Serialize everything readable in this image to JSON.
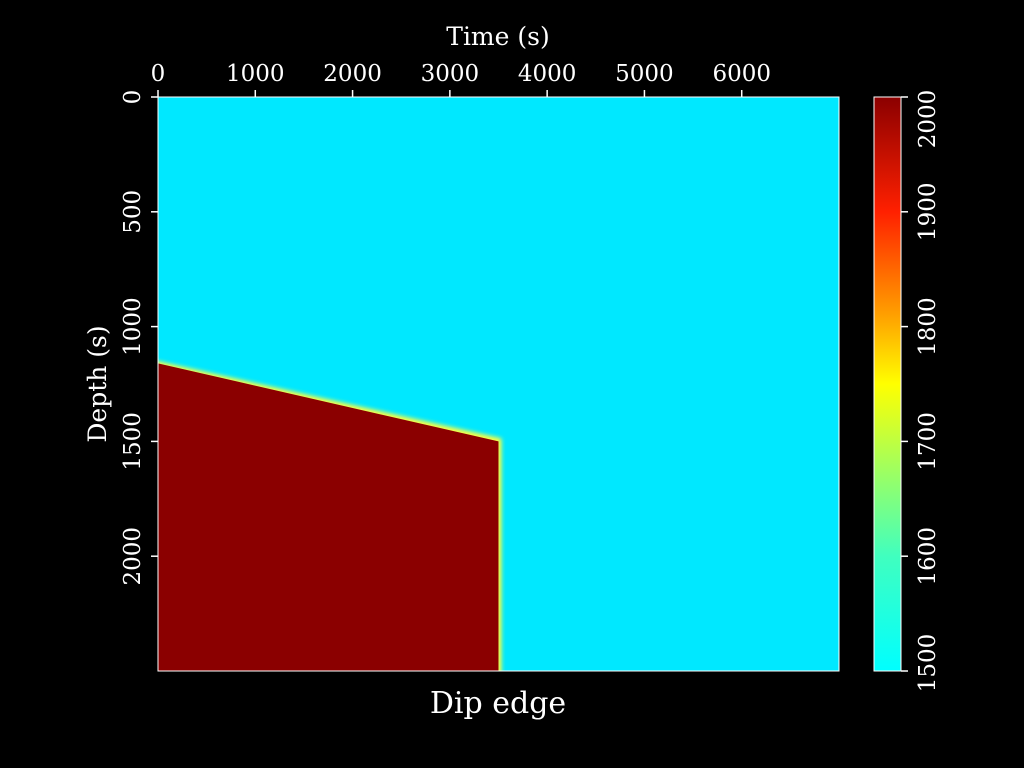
{
  "chart_data": {
    "type": "heatmap",
    "title": "Dip edge",
    "xlabel": "Time (s)",
    "ylabel": "Depth (s)",
    "xlim": [
      0,
      7000
    ],
    "ylim": [
      2500,
      0
    ],
    "x_ticks": [
      "0",
      "1000",
      "2000",
      "3000",
      "4000",
      "5000",
      "6000"
    ],
    "y_ticks": [
      "0",
      "500",
      "1000",
      "1500",
      "2000"
    ],
    "x_tick_values": [
      0,
      1000,
      2000,
      3000,
      4000,
      5000,
      6000
    ],
    "y_tick_values": [
      0,
      500,
      1000,
      1500,
      2000
    ],
    "colorbar": {
      "range": [
        1500,
        2000
      ],
      "ticks": [
        "1500",
        "1600",
        "1700",
        "1800",
        "1900",
        "2000"
      ],
      "tick_values": [
        1500,
        1600,
        1700,
        1800,
        1900,
        2000
      ],
      "colormap": "jet"
    },
    "background_value": 1500,
    "body": {
      "value": 2000,
      "top_edge": [
        {
          "x": 0,
          "y": 1160
        },
        {
          "x": 3500,
          "y": 1500
        }
      ],
      "right_edge_x": 3500,
      "bottom_y": 2500
    }
  },
  "colors": {
    "background": "#000000",
    "low": "#00e8ff",
    "high": "#8b0000"
  }
}
